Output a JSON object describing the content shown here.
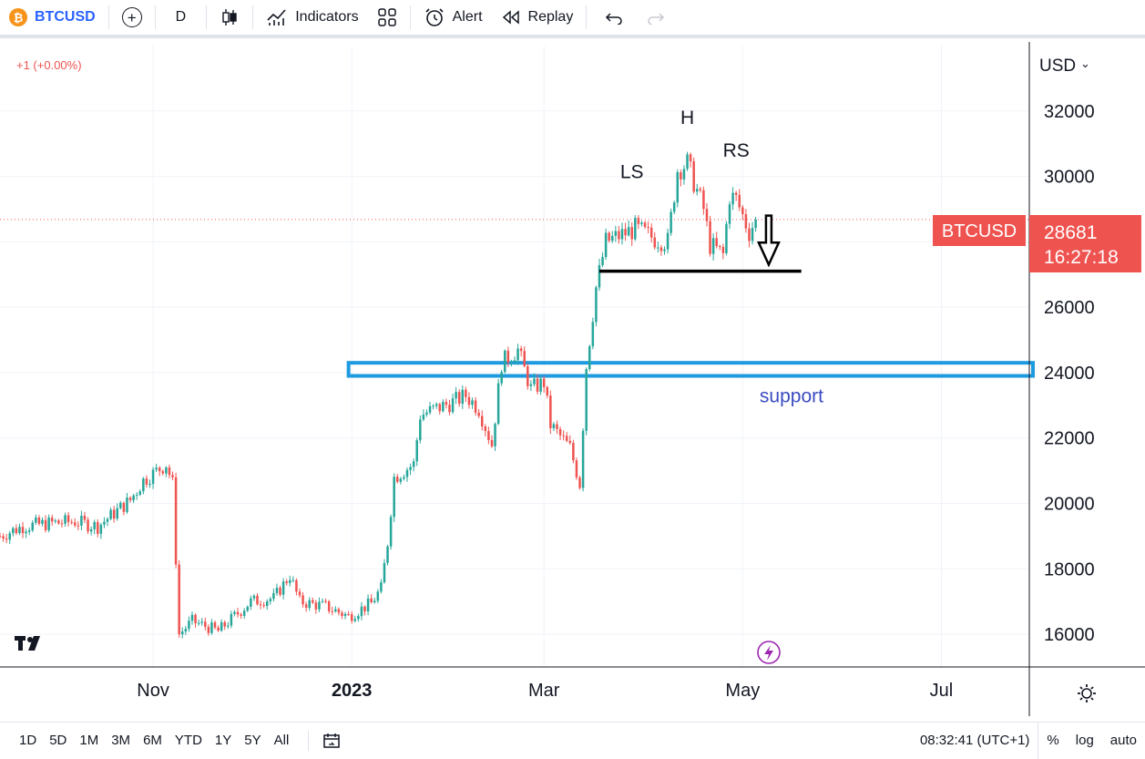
{
  "toolbar": {
    "symbol": "BTCUSD",
    "coin_glyph": "₿",
    "interval": "D",
    "indicators_label": "Indicators",
    "alert_label": "Alert",
    "replay_label": "Replay"
  },
  "chart_header": {
    "change": "+1 (+0.00%)"
  },
  "price_axis": {
    "currency": "USD",
    "currency_caret": "⌄"
  },
  "last_price": {
    "symbol": "BTCUSD",
    "value": "28681",
    "countdown": "16:27:18"
  },
  "bottom_bar": {
    "ranges": [
      "1D",
      "5D",
      "1M",
      "3M",
      "6M",
      "YTD",
      "1Y",
      "5Y",
      "All"
    ],
    "clock": "08:32:41 (UTC+1)",
    "percent_label": "%",
    "log_label": "log",
    "auto_label": "auto"
  },
  "chart_data": {
    "type": "candlestick",
    "title": "",
    "ylim": [
      15000,
      34000
    ],
    "y_ticks": [
      16000,
      18000,
      20000,
      22000,
      24000,
      26000,
      28000,
      30000,
      32000
    ],
    "x_labels": [
      {
        "label": "Nov",
        "date": "2022-11-01"
      },
      {
        "label": "2023",
        "date": "2023-01-01"
      },
      {
        "label": "Mar",
        "date": "2023-03-01"
      },
      {
        "label": "May",
        "date": "2023-05-01"
      },
      {
        "label": "Jul",
        "date": "2023-07-01"
      }
    ],
    "xlim": [
      "2022-09-15",
      "2023-07-28"
    ],
    "grid": true,
    "up_color": "#26a69a",
    "down_color": "#ef5350",
    "anchors": [
      [
        "2022-09-15",
        19000
      ],
      [
        "2022-09-22",
        19300
      ],
      [
        "2022-10-01",
        19400
      ],
      [
        "2022-10-08",
        19450
      ],
      [
        "2022-10-15",
        19300
      ],
      [
        "2022-10-25",
        20100
      ],
      [
        "2022-10-29",
        20700
      ],
      [
        "2022-11-05",
        21200
      ],
      [
        "2022-11-07",
        20600
      ],
      [
        "2022-11-09",
        16000
      ],
      [
        "2022-11-13",
        16400
      ],
      [
        "2022-11-21",
        16100
      ],
      [
        "2022-12-01",
        17000
      ],
      [
        "2022-12-08",
        17100
      ],
      [
        "2022-12-13",
        17800
      ],
      [
        "2022-12-16",
        17000
      ],
      [
        "2022-12-24",
        16850
      ],
      [
        "2022-12-31",
        16550
      ],
      [
        "2023-01-07",
        16950
      ],
      [
        "2023-01-10",
        17400
      ],
      [
        "2023-01-12",
        18800
      ],
      [
        "2023-01-14",
        20800
      ],
      [
        "2023-01-20",
        21200
      ],
      [
        "2023-01-22",
        22700
      ],
      [
        "2023-02-01",
        23100
      ],
      [
        "2023-02-05",
        23300
      ],
      [
        "2023-02-09",
        22900
      ],
      [
        "2023-02-13",
        21800
      ],
      [
        "2023-02-16",
        24300
      ],
      [
        "2023-02-21",
        24700
      ],
      [
        "2023-02-25",
        23500
      ],
      [
        "2023-03-01",
        23700
      ],
      [
        "2023-03-03",
        22400
      ],
      [
        "2023-03-09",
        21700
      ],
      [
        "2023-03-12",
        20600
      ],
      [
        "2023-03-14",
        24200
      ],
      [
        "2023-03-17",
        26600
      ],
      [
        "2023-03-20",
        28000
      ],
      [
        "2023-03-29",
        28400
      ],
      [
        "2023-04-04",
        28100
      ],
      [
        "2023-04-08",
        28000
      ],
      [
        "2023-04-11",
        30200
      ],
      [
        "2023-04-14",
        30400
      ],
      [
        "2023-04-19",
        29000
      ],
      [
        "2023-04-21",
        27900
      ],
      [
        "2023-04-25",
        27600
      ],
      [
        "2023-04-27",
        29400
      ],
      [
        "2023-04-29",
        29300
      ],
      [
        "2023-05-03",
        28300
      ],
      [
        "2023-05-05",
        28681
      ]
    ],
    "annotations": [
      {
        "type": "text",
        "text": "LS",
        "date": "2023-03-28",
        "price": 29950
      },
      {
        "type": "text",
        "text": "H",
        "date": "2023-04-14",
        "price": 31600
      },
      {
        "type": "text",
        "text": "RS",
        "date": "2023-04-29",
        "price": 30600
      },
      {
        "type": "neckline",
        "from": "2023-03-18",
        "to": "2023-05-19",
        "price": 27100,
        "color": "#000000"
      },
      {
        "type": "arrow-down",
        "date": "2023-05-09",
        "from_price": 28800,
        "to_price": 27300
      },
      {
        "type": "zone",
        "from": "2022-12-31",
        "to": "2023-07-30",
        "top": 24300,
        "bottom": 23900,
        "color": "#1e9ae0"
      },
      {
        "type": "text",
        "text": "support",
        "date": "2023-05-16",
        "price": 23100,
        "color": "#3b4cc0"
      }
    ]
  }
}
